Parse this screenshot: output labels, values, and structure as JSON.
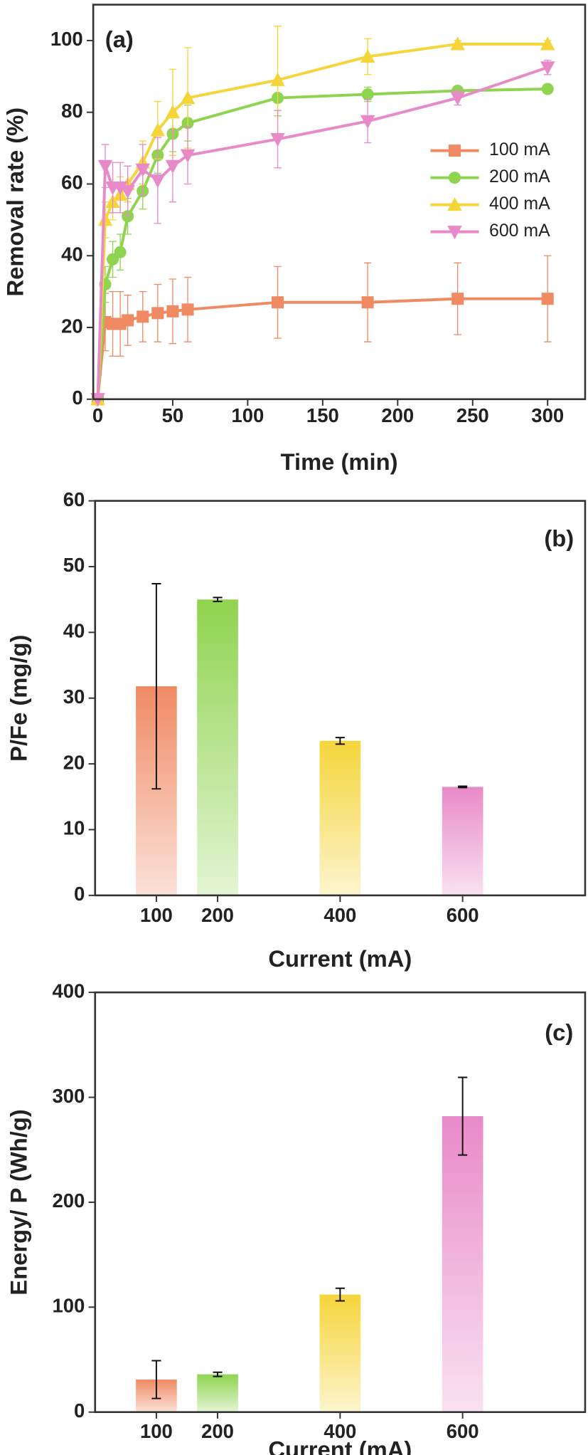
{
  "chart_data": [
    {
      "type": "line",
      "title": "(a)",
      "x_label": "Time (min)",
      "y_label": "Removal rate (%)",
      "x": [
        0,
        5,
        10,
        15,
        20,
        30,
        40,
        50,
        60,
        120,
        180,
        240,
        300
      ],
      "series": [
        {
          "name": "100 mA",
          "color": "#f08a63",
          "marker": "square",
          "values": [
            0,
            21.5,
            21,
            21,
            22,
            23,
            24,
            24.5,
            25,
            27,
            27,
            28,
            28
          ],
          "errors": [
            0,
            8,
            9,
            9,
            7,
            7,
            8,
            9,
            9,
            10,
            11,
            10,
            12
          ]
        },
        {
          "name": "200 mA",
          "color": "#8fd44f",
          "marker": "circle",
          "values": [
            0,
            32,
            39,
            41,
            51,
            58,
            68,
            74,
            77,
            84,
            85,
            86,
            86.5
          ],
          "errors": [
            0,
            5,
            5,
            5,
            5,
            5,
            5,
            5,
            5,
            5,
            2,
            1,
            1
          ]
        },
        {
          "name": "400 mA",
          "color": "#f5d53a",
          "marker": "triangle-up",
          "values": [
            0,
            50,
            55,
            57,
            60,
            66,
            75,
            80,
            84,
            89,
            95.5,
            99,
            99
          ],
          "errors": [
            0,
            5,
            5,
            5,
            5,
            6,
            8,
            12,
            14,
            15,
            5,
            1,
            1
          ]
        },
        {
          "name": "600 mA",
          "color": "#e88ac8",
          "marker": "triangle-down",
          "values": [
            0,
            65,
            59,
            59,
            58,
            64,
            61,
            65,
            68,
            72.5,
            77.5,
            84,
            92.5
          ],
          "errors": [
            0,
            6,
            7,
            7,
            7,
            7,
            12,
            10,
            8,
            8,
            6,
            2,
            2
          ]
        }
      ],
      "xlim": [
        -3,
        325
      ],
      "xticks": [
        0,
        50,
        100,
        150,
        200,
        250,
        300
      ],
      "ylim": [
        0,
        110
      ],
      "yticks": [
        0,
        20,
        40,
        60,
        80,
        100
      ],
      "legend": "center right"
    },
    {
      "type": "bar",
      "title": "(b)",
      "x_label": "Current  (mA)",
      "y_label": "P/Fe (mg/g)",
      "x": [
        100,
        200,
        400,
        600
      ],
      "values": [
        31.8,
        45,
        23.5,
        16.5
      ],
      "errors": [
        15.6,
        0.3,
        0.5,
        0.1
      ],
      "colors": [
        "#f08a63",
        "#8fd44f",
        "#f5d53a",
        "#e88ac8"
      ],
      "xlim": [
        0,
        800
      ],
      "xticks": [
        100,
        200,
        400,
        600
      ],
      "ylim": [
        0,
        60
      ],
      "yticks": [
        0,
        10,
        20,
        30,
        40,
        50,
        60
      ]
    },
    {
      "type": "bar",
      "title": "(c)",
      "x_label": "Current  (mA)",
      "y_label": "Energy/ P (Wh/g)",
      "x": [
        100,
        200,
        400,
        600
      ],
      "values": [
        31,
        36,
        112,
        282
      ],
      "errors": [
        18,
        2,
        6,
        37
      ],
      "colors": [
        "#f08a63",
        "#8fd44f",
        "#f5d53a",
        "#e88ac8"
      ],
      "xlim": [
        0,
        800
      ],
      "xticks": [
        100,
        200,
        400,
        600
      ],
      "ylim": [
        0,
        400
      ],
      "yticks": [
        0,
        100,
        200,
        300,
        400
      ]
    }
  ]
}
